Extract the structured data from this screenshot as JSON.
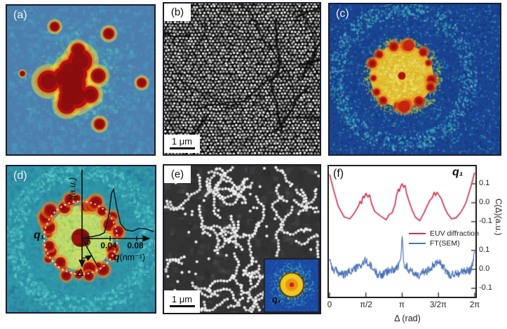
{
  "figure": {
    "panels": {
      "a": {
        "label": "(a)"
      },
      "b": {
        "label": "(b)",
        "scalebar": "1 μm"
      },
      "c": {
        "label": "(c)"
      },
      "d": {
        "label": "(d)",
        "annotations": {
          "q1": "q₁",
          "phi": "φ",
          "delta": "Δ"
        }
      },
      "e": {
        "label": "(e)",
        "scalebar": "1 μm",
        "inset_label": "q₁"
      },
      "f": {
        "label": "(f)"
      }
    }
  },
  "palette": {
    "panel_border": "#1b1b2e",
    "heat_bg_a": "#4d7fae",
    "heat_bg_c": "#1a4390",
    "heat_bg_d": "#2e95a6",
    "heat_red": "#b01111",
    "heat_darkred": "#8c0d0d",
    "heat_orange": "#ee7d18",
    "heat_yellow": "#f2e032",
    "sem_bg_b": "#0e0e0e",
    "sem_bg_e": "#333333",
    "sem_dot": "#e9e9e9",
    "inset_bg": "#1b4aa6",
    "inset_disk": "#eec81f",
    "euv_red": "#d5344f",
    "ft_blue": "#4a72b8"
  },
  "chart_data": [
    {
      "type": "line",
      "panel": "f",
      "xlabel": "Δ (rad)",
      "ylabel": "C(Δ)(a.u.)",
      "corner_label": "q₁",
      "x_range": [
        0,
        6.2832
      ],
      "x_tick_labels": [
        "0",
        "π/2",
        "π",
        "3/2π",
        "2π"
      ],
      "x_tick_values": [
        0,
        1.5708,
        3.1416,
        4.7124,
        6.2832
      ],
      "right_tick_labels": [
        "0.1",
        "0.0",
        "-0.1",
        "0.1",
        "0.0",
        "-0.1"
      ],
      "upper_axis_tick_values": [
        0.1,
        0.0,
        -0.1
      ],
      "lower_axis_tick_values": [
        0.1,
        0.0,
        -0.1
      ],
      "layout": "two curves stacked with separate zero baselines, y ticks on right axis, legend inside",
      "series": [
        {
          "name": "EUV diffraction",
          "color": "#d5344f",
          "baseline": "upper",
          "points": [
            [
              0,
              0.15
            ],
            [
              0.19,
              0.06
            ],
            [
              0.38,
              -0.02
            ],
            [
              0.63,
              -0.075
            ],
            [
              0.88,
              -0.085
            ],
            [
              1.07,
              -0.055
            ],
            [
              1.26,
              -0.015
            ],
            [
              1.32,
              0.008
            ],
            [
              1.38,
              -0.005
            ],
            [
              1.45,
              0.035
            ],
            [
              1.51,
              0.026
            ],
            [
              1.57,
              0.05
            ],
            [
              1.66,
              0.03
            ],
            [
              1.73,
              0.042
            ],
            [
              1.82,
              -0.005
            ],
            [
              1.95,
              -0.045
            ],
            [
              2.2,
              -0.07
            ],
            [
              2.45,
              -0.09
            ],
            [
              2.58,
              -0.062
            ],
            [
              2.7,
              -0.055
            ],
            [
              2.83,
              -0.01
            ],
            [
              2.9,
              0.04
            ],
            [
              2.98,
              0.072
            ],
            [
              3.02,
              0.06
            ],
            [
              3.08,
              0.088
            ],
            [
              3.14,
              0.1
            ],
            [
              3.2,
              0.082
            ],
            [
              3.27,
              0.09
            ],
            [
              3.33,
              0.05
            ],
            [
              3.46,
              0
            ],
            [
              3.58,
              -0.04
            ],
            [
              3.71,
              -0.075
            ],
            [
              3.9,
              -0.095
            ],
            [
              4.08,
              -0.055
            ],
            [
              4.21,
              -0.02
            ],
            [
              4.33,
              0.01
            ],
            [
              4.46,
              0.03
            ],
            [
              4.52,
              0.055
            ],
            [
              4.59,
              0.038
            ],
            [
              4.65,
              0.055
            ],
            [
              4.71,
              0.045
            ],
            [
              4.84,
              0.02
            ],
            [
              4.96,
              -0.02
            ],
            [
              5.09,
              -0.055
            ],
            [
              5.28,
              -0.085
            ],
            [
              5.47,
              -0.08
            ],
            [
              5.65,
              -0.055
            ],
            [
              5.78,
              -0.03
            ],
            [
              5.9,
              0
            ],
            [
              6.03,
              0.05
            ],
            [
              6.15,
              0.1
            ],
            [
              6.28,
              0.16
            ]
          ]
        },
        {
          "name": "FT(SEM)",
          "color": "#4a72b8",
          "baseline": "lower",
          "noise_amplitude": 0.028,
          "envelope_points": [
            [
              0,
              0.065
            ],
            [
              0.13,
              0
            ],
            [
              0.31,
              -0.012
            ],
            [
              0.63,
              -0.032
            ],
            [
              0.94,
              -0.005
            ],
            [
              1.26,
              0.012
            ],
            [
              1.57,
              0.045
            ],
            [
              1.88,
              0
            ],
            [
              2.2,
              -0.032
            ],
            [
              2.51,
              -0.012
            ],
            [
              2.83,
              0.005
            ],
            [
              3.02,
              0.02
            ],
            [
              3.1,
              0.08
            ],
            [
              3.14,
              0.19
            ],
            [
              3.18,
              0.08
            ],
            [
              3.27,
              0.02
            ],
            [
              3.58,
              -0.012
            ],
            [
              3.9,
              -0.032
            ],
            [
              4.21,
              -0.005
            ],
            [
              4.52,
              0.03
            ],
            [
              4.71,
              0.05
            ],
            [
              4.9,
              0.01
            ],
            [
              5.22,
              -0.032
            ],
            [
              5.53,
              -0.022
            ],
            [
              5.84,
              -0.01
            ],
            [
              6.09,
              0
            ],
            [
              6.22,
              0.04
            ],
            [
              6.28,
              0.09
            ]
          ]
        }
      ]
    },
    {
      "type": "line",
      "panel": "d-inset-radial-profile",
      "xlabel_symbol": "q",
      "xlabel_unit": "(nm⁻¹)",
      "ylabel": "I(a.u.)",
      "x_tick_labels": [
        "0.04",
        "0.08"
      ],
      "x_tick_values": [
        0.04,
        0.08
      ],
      "peak_label": "q₁",
      "peak_q": 0.045,
      "points": [
        [
          0.005,
          0.02
        ],
        [
          0.015,
          0.04
        ],
        [
          0.025,
          0.07
        ],
        [
          0.032,
          0.12
        ],
        [
          0.038,
          0.45
        ],
        [
          0.042,
          0.92
        ],
        [
          0.045,
          1
        ],
        [
          0.05,
          0.6
        ],
        [
          0.055,
          0.3
        ],
        [
          0.062,
          0.18
        ],
        [
          0.072,
          0.15
        ],
        [
          0.082,
          0.21
        ],
        [
          0.092,
          0.19
        ],
        [
          0.102,
          0.14
        ]
      ]
    }
  ]
}
